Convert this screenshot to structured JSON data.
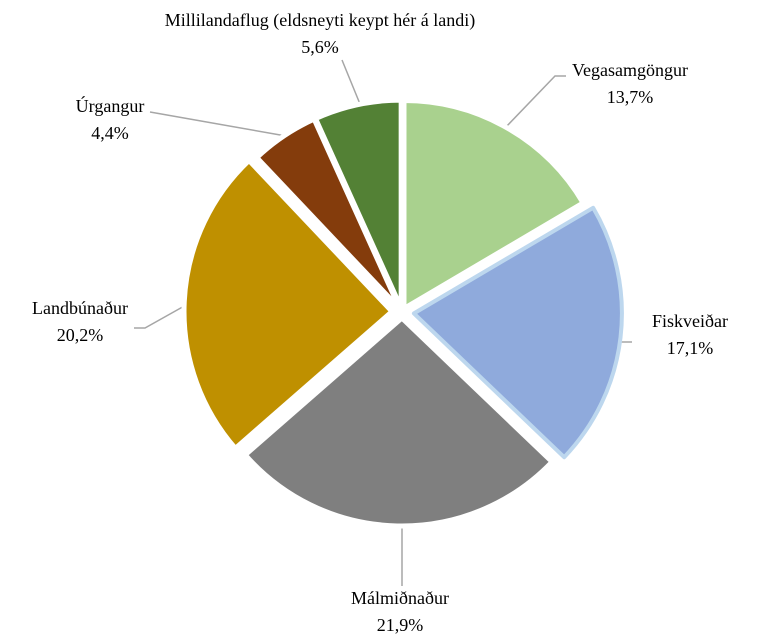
{
  "chart_data": {
    "type": "pie",
    "categories": [
      "Vegasamgöngur",
      "Fiskveiðar",
      "Málmiðnaður",
      "Landbúnaður",
      "Úrgangur",
      "Millilandaflug  (eldsneyti  keypt hér á landi)"
    ],
    "values": [
      13.7,
      17.1,
      21.9,
      20.2,
      4.4,
      5.6
    ],
    "value_labels": [
      "13,7%",
      "17,1%",
      "21,9%",
      "20,2%",
      "4,4%",
      "5,6%"
    ],
    "colors": [
      "#a9d18e",
      "#8faadc",
      "#7f7f7f",
      "#bf9000",
      "#843c0c",
      "#538135"
    ]
  }
}
